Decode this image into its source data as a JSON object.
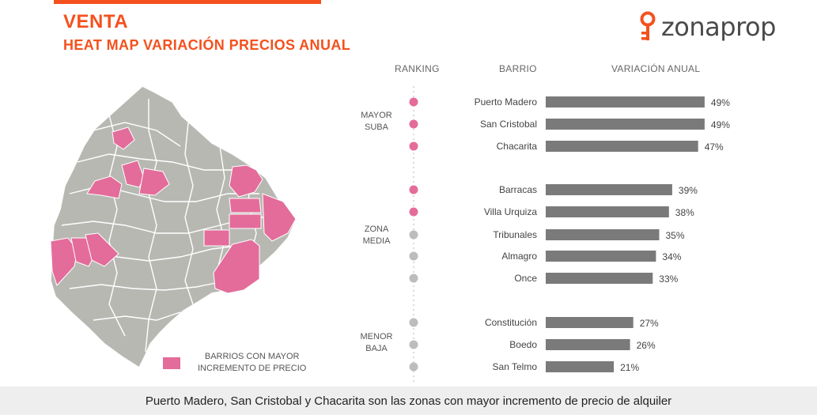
{
  "header": {
    "title": "VENTA",
    "subtitle": "HEAT MAP VARIACIÓN PRECIOS ANUAL",
    "logo_text": "zonaprop"
  },
  "columns": {
    "ranking": "RANKING",
    "barrio": "BARRIO",
    "variacion": "VARIACIÓN ANUAL"
  },
  "groups": [
    {
      "line1": "MAYOR",
      "line2": "SUBA"
    },
    {
      "line1": "ZONA",
      "line2": "MEDIA"
    },
    {
      "line1": "MENOR",
      "line2": "BAJA"
    }
  ],
  "legend": {
    "line1": "BARRIOS CON MAYOR",
    "line2": "INCREMENTO DE PRECIO"
  },
  "footer": {
    "text": "Puerto Madero, San Cristobal y Chacarita son las zonas con mayor incremento de precio de alquiler"
  },
  "colors": {
    "accent": "#f4511e",
    "highlight": "#e36c9a",
    "bar": "#7a7a7a",
    "map_gray": "#b8b8b3",
    "dot_gray": "#bdbdbd"
  },
  "chart_data": {
    "type": "bar",
    "orientation": "horizontal",
    "categories": [
      "Puerto Madero",
      "San Cristobal",
      "Chacarita",
      "Barracas",
      "Villa Urquiza",
      "Tribunales",
      "Almagro",
      "Once",
      "Constitución",
      "Boedo",
      "San Telmo"
    ],
    "values": [
      49,
      49,
      47,
      39,
      38,
      35,
      34,
      33,
      27,
      26,
      21
    ],
    "value_labels": [
      "49%",
      "49%",
      "47%",
      "39%",
      "38%",
      "35%",
      "34%",
      "33%",
      "27%",
      "26%",
      "21%"
    ],
    "group_index": [
      0,
      0,
      0,
      1,
      1,
      1,
      1,
      1,
      2,
      2,
      2
    ],
    "highlighted": [
      true,
      true,
      true,
      true,
      true,
      false,
      false,
      false,
      false,
      false,
      false
    ],
    "unit": "%",
    "xlim": [
      0,
      50
    ],
    "grid": false
  }
}
